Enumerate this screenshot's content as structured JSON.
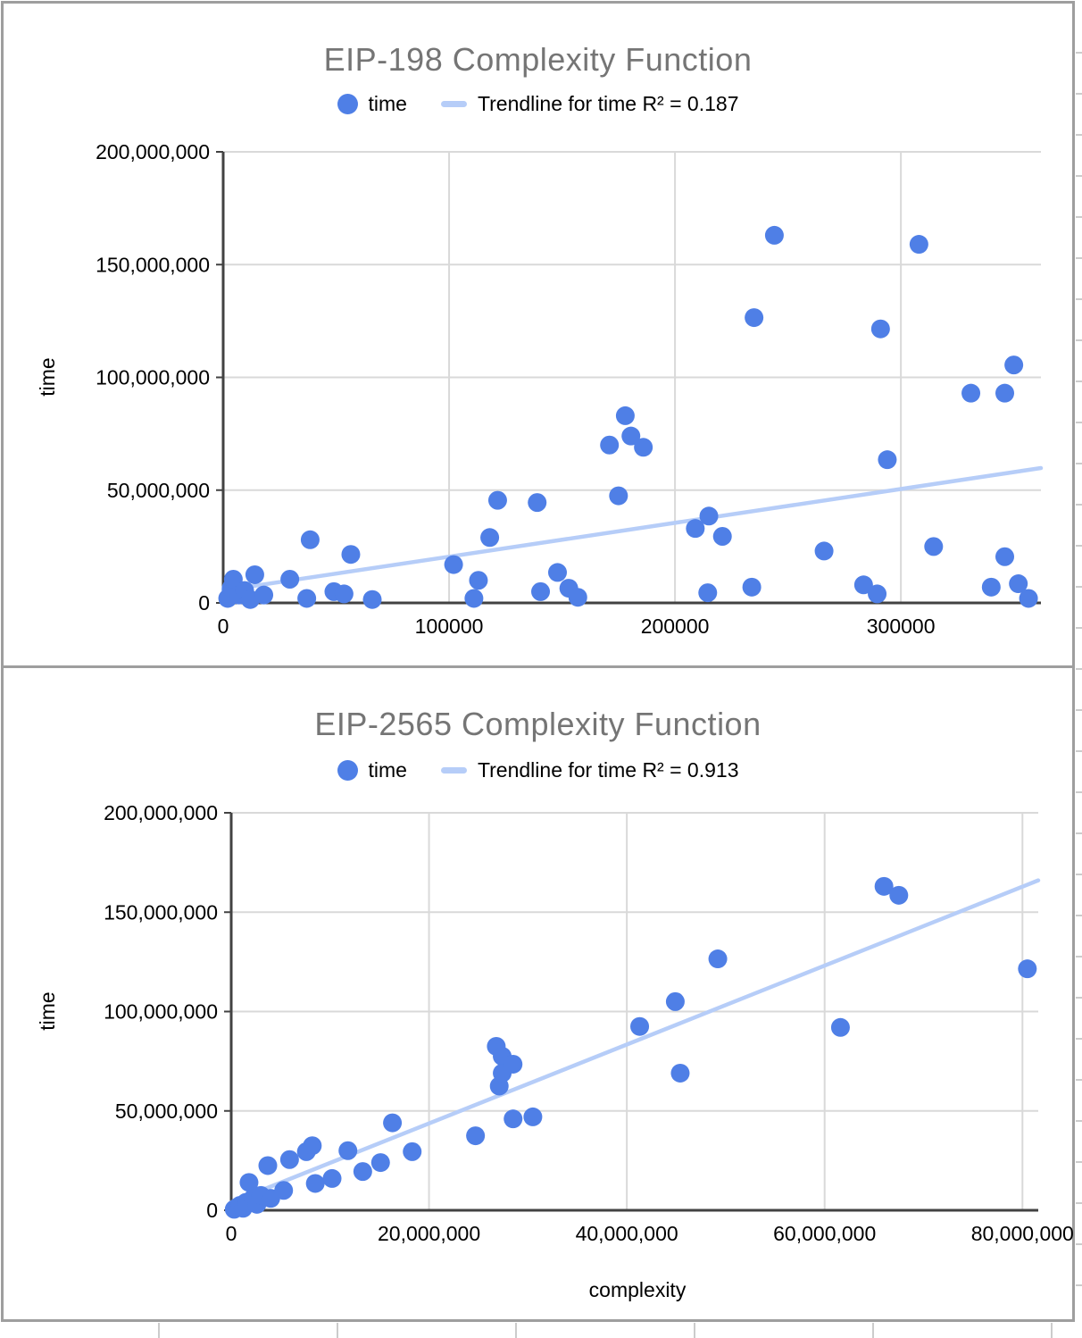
{
  "page": {
    "background": "#ffffff",
    "card_border_color": "#9e9e9e"
  },
  "chart_data": [
    {
      "type": "scatter",
      "title": "EIP-198 Complexity Function",
      "legend": {
        "series_label": "time",
        "trendline_label": "Trendline for time R² = 0.187"
      },
      "y_axis_title": "time",
      "x_axis_title": "",
      "xlim": [
        0,
        362000
      ],
      "ylim": [
        0,
        200000000
      ],
      "grid": true,
      "legend_position": "top",
      "x_ticks": [
        {
          "v": 0,
          "label": "0"
        },
        {
          "v": 100000,
          "label": "100000"
        },
        {
          "v": 200000,
          "label": "200000"
        },
        {
          "v": 300000,
          "label": "300000"
        }
      ],
      "y_ticks": [
        {
          "v": 0,
          "label": "0"
        },
        {
          "v": 50000000,
          "label": "50,000,000"
        },
        {
          "v": 100000000,
          "label": "100,000,000"
        },
        {
          "v": 150000000,
          "label": "150,000,000"
        },
        {
          "v": 200000000,
          "label": "200,000,000"
        }
      ],
      "colors": {
        "point": "#4f7fe6",
        "trendline": "#b6cdf8",
        "grid": "#d9d9d9",
        "axis": "#424242",
        "tick_text": "#000000"
      },
      "trendline": {
        "x0": 0,
        "y0": 5500000,
        "x1": 362000,
        "y1": 59800000,
        "r2": 0.187
      },
      "points": [
        [
          2000,
          2000000
        ],
        [
          3500,
          6500000
        ],
        [
          4500,
          10500000
        ],
        [
          7000,
          3500000
        ],
        [
          9500,
          5500000
        ],
        [
          12000,
          1500000
        ],
        [
          14000,
          12500000
        ],
        [
          18000,
          3500000
        ],
        [
          29500,
          10500000
        ],
        [
          37000,
          2000000
        ],
        [
          38500,
          28000000
        ],
        [
          49000,
          5000000
        ],
        [
          53500,
          4000000
        ],
        [
          56500,
          21500000
        ],
        [
          66000,
          1500000
        ],
        [
          102000,
          17000000
        ],
        [
          111000,
          2000000
        ],
        [
          113000,
          10000000
        ],
        [
          118000,
          29000000
        ],
        [
          121500,
          45500000
        ],
        [
          139000,
          44500000
        ],
        [
          140500,
          5000000
        ],
        [
          148000,
          13500000
        ],
        [
          153000,
          6500000
        ],
        [
          157000,
          2500000
        ],
        [
          171000,
          70000000
        ],
        [
          175000,
          47500000
        ],
        [
          178000,
          83000000
        ],
        [
          180500,
          74000000
        ],
        [
          186000,
          69000000
        ],
        [
          209000,
          33000000
        ],
        [
          214500,
          4500000
        ],
        [
          215000,
          38500000
        ],
        [
          221000,
          29500000
        ],
        [
          234000,
          7000000
        ],
        [
          235000,
          126500000
        ],
        [
          244000,
          163000000
        ],
        [
          266000,
          23000000
        ],
        [
          283500,
          8000000
        ],
        [
          289500,
          4000000
        ],
        [
          291000,
          121500000
        ],
        [
          294000,
          63500000
        ],
        [
          308000,
          159000000
        ],
        [
          314500,
          25000000
        ],
        [
          331000,
          93000000
        ],
        [
          340000,
          7000000
        ],
        [
          346000,
          93000000
        ],
        [
          346000,
          20500000
        ],
        [
          350000,
          105500000
        ],
        [
          352000,
          8500000
        ],
        [
          356500,
          2000000
        ]
      ]
    },
    {
      "type": "scatter",
      "title": "EIP-2565 Complexity Function",
      "legend": {
        "series_label": "time",
        "trendline_label": "Trendline for time R² = 0.913"
      },
      "y_axis_title": "time",
      "x_axis_title": "complexity",
      "xlim": [
        0,
        81600000
      ],
      "ylim": [
        0,
        200000000
      ],
      "grid": true,
      "legend_position": "top",
      "x_ticks": [
        {
          "v": 0,
          "label": "0"
        },
        {
          "v": 20000000,
          "label": "20,000,000"
        },
        {
          "v": 40000000,
          "label": "40,000,000"
        },
        {
          "v": 60000000,
          "label": "60,000,000"
        },
        {
          "v": 80000000,
          "label": "80,000,000"
        }
      ],
      "y_ticks": [
        {
          "v": 0,
          "label": "0"
        },
        {
          "v": 50000000,
          "label": "50,000,000"
        },
        {
          "v": 100000000,
          "label": "100,000,000"
        },
        {
          "v": 150000000,
          "label": "150,000,000"
        },
        {
          "v": 200000000,
          "label": "200,000,000"
        }
      ],
      "colors": {
        "point": "#4f7fe6",
        "trendline": "#b6cdf8",
        "grid": "#d9d9d9",
        "axis": "#424242",
        "tick_text": "#000000"
      },
      "trendline": {
        "x0": 0,
        "y0": 4000000,
        "x1": 81600000,
        "y1": 166000000,
        "r2": 0.913
      },
      "points": [
        [
          300000,
          500000
        ],
        [
          600000,
          1500000
        ],
        [
          900000,
          2500000
        ],
        [
          1200000,
          1000000
        ],
        [
          1500000,
          4000000
        ],
        [
          1800000,
          14000000
        ],
        [
          2200000,
          6000000
        ],
        [
          2600000,
          3000000
        ],
        [
          3000000,
          7500000
        ],
        [
          3700000,
          22500000
        ],
        [
          4000000,
          6000000
        ],
        [
          5300000,
          10000000
        ],
        [
          5900000,
          25500000
        ],
        [
          7600000,
          29500000
        ],
        [
          8200000,
          32500000
        ],
        [
          8500000,
          13500000
        ],
        [
          10200000,
          16000000
        ],
        [
          11800000,
          30000000
        ],
        [
          13300000,
          19500000
        ],
        [
          15100000,
          24000000
        ],
        [
          16300000,
          44000000
        ],
        [
          18300000,
          29500000
        ],
        [
          24700000,
          37500000
        ],
        [
          26800000,
          82500000
        ],
        [
          27100000,
          62500000
        ],
        [
          27400000,
          77500000
        ],
        [
          27400000,
          69000000
        ],
        [
          28500000,
          73500000
        ],
        [
          28500000,
          46000000
        ],
        [
          30500000,
          47000000
        ],
        [
          41300000,
          92500000
        ],
        [
          44900000,
          105000000
        ],
        [
          45400000,
          69000000
        ],
        [
          49200000,
          126500000
        ],
        [
          61600000,
          92000000
        ],
        [
          66000000,
          163000000
        ],
        [
          67500000,
          158500000
        ],
        [
          80500000,
          121500000
        ]
      ]
    }
  ]
}
